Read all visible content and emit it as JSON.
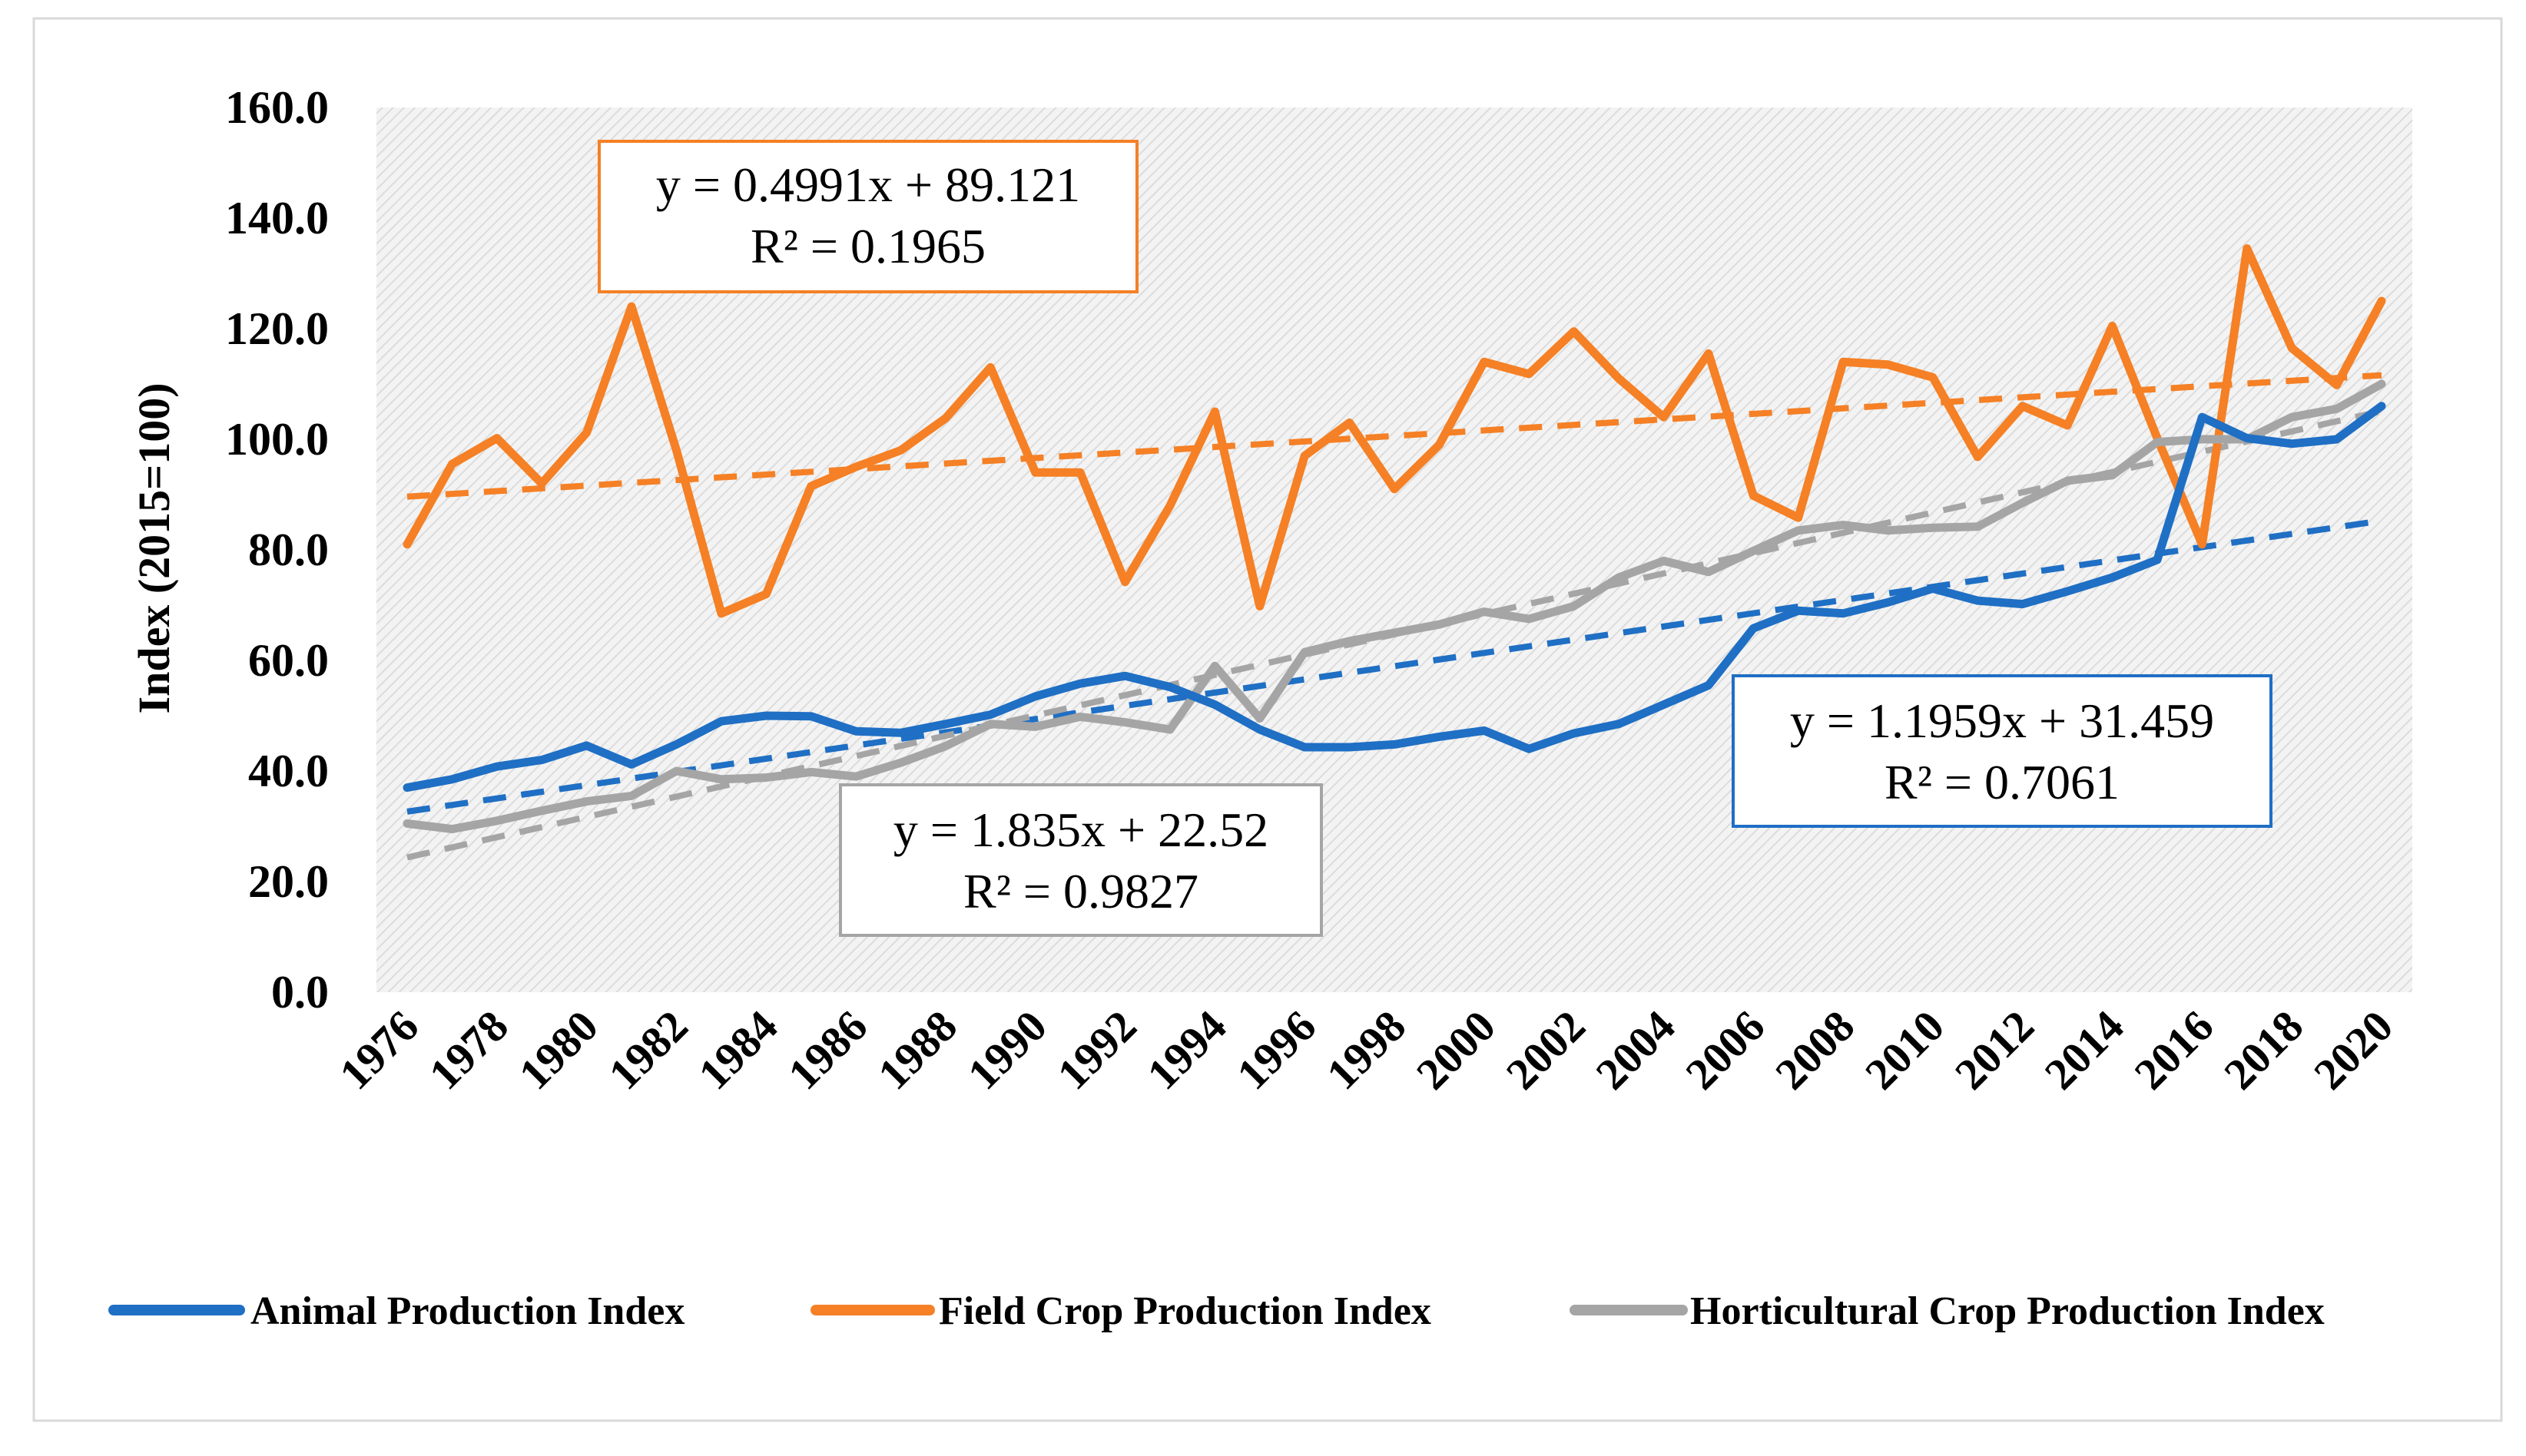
{
  "chart_data": {
    "type": "line",
    "title": "",
    "xlabel": "",
    "ylabel": "Index (2015=100)",
    "ylim": [
      0,
      160
    ],
    "y_ticks": [
      "0.0",
      "20.0",
      "40.0",
      "60.0",
      "80.0",
      "100.0",
      "120.0",
      "140.0",
      "160.0"
    ],
    "x": [
      1976,
      1977,
      1978,
      1979,
      1980,
      1981,
      1982,
      1983,
      1984,
      1985,
      1986,
      1987,
      1988,
      1989,
      1990,
      1991,
      1992,
      1993,
      1994,
      1995,
      1996,
      1997,
      1998,
      1999,
      2000,
      2001,
      2002,
      2003,
      2004,
      2005,
      2006,
      2007,
      2008,
      2009,
      2010,
      2011,
      2012,
      2013,
      2014,
      2015,
      2016,
      2017,
      2018,
      2019,
      2020
    ],
    "x_tick_labels": [
      "1976",
      "1978",
      "1980",
      "1982",
      "1984",
      "1986",
      "1988",
      "1990",
      "1992",
      "1994",
      "1996",
      "1998",
      "2000",
      "2002",
      "2004",
      "2006",
      "2008",
      "2010",
      "2012",
      "2014",
      "2016",
      "2018",
      "2020"
    ],
    "grid": false,
    "legend_position": "bottom",
    "series": [
      {
        "name": "Animal Production Index",
        "color": "#1f6fc4",
        "values": [
          37.0,
          38.5,
          40.8,
          42.0,
          44.6,
          41.2,
          44.8,
          49.0,
          50.0,
          49.9,
          47.2,
          46.9,
          48.5,
          50.2,
          53.5,
          55.8,
          57.2,
          55.2,
          52.0,
          47.5,
          44.3,
          44.3,
          44.8,
          46.2,
          47.3,
          44.0,
          46.8,
          48.5,
          52.0,
          55.5,
          65.8,
          69.0,
          68.5,
          70.5,
          73.0,
          70.8,
          70.2,
          72.5,
          75.0,
          78.2,
          104.0,
          100.2,
          99.2,
          100.0,
          106.0
        ],
        "trendline": {
          "slope": 1.1959,
          "intercept": 31.459,
          "equation": "y = 1.1959x + 31.459",
          "r2": "R² = 0.7061"
        }
      },
      {
        "name": "Field Crop Production Index",
        "color": "#f58025",
        "values": [
          81.0,
          95.5,
          100.2,
          92.0,
          101.2,
          124.0,
          98.0,
          68.5,
          72.0,
          91.5,
          95.0,
          98.0,
          103.8,
          113.0,
          94.0,
          94.0,
          74.2,
          88.0,
          105.0,
          69.8,
          97.0,
          103.0,
          91.0,
          99.0,
          114.0,
          111.8,
          119.5,
          111.0,
          104.0,
          115.5,
          89.8,
          85.8,
          114.0,
          113.5,
          111.2,
          96.8,
          106.0,
          102.5,
          120.5,
          100.2,
          81.0,
          134.5,
          116.5,
          109.8,
          125.0
        ],
        "trendline": {
          "slope": 0.4991,
          "intercept": 89.121,
          "equation": "y = 0.4991x + 89.121",
          "r2": "R² = 0.1965"
        }
      },
      {
        "name": "Horticultural Crop Production Index",
        "color": "#a5a5a5",
        "values": [
          30.5,
          29.5,
          31.0,
          32.8,
          34.5,
          35.5,
          40.0,
          38.5,
          38.8,
          39.8,
          39.0,
          41.5,
          44.5,
          48.5,
          48.0,
          49.8,
          48.8,
          47.5,
          59.0,
          49.5,
          61.5,
          63.5,
          65.0,
          66.5,
          68.8,
          67.5,
          69.8,
          75.0,
          78.0,
          76.0,
          79.8,
          83.5,
          84.5,
          83.5,
          84.0,
          84.2,
          88.5,
          92.5,
          93.5,
          99.5,
          100.0,
          100.0,
          104.0,
          105.5,
          110.0
        ],
        "trendline": {
          "slope": 1.835,
          "intercept": 22.52,
          "equation": "y = 1.835x + 22.52",
          "r2": "R² = 0.9827"
        }
      }
    ]
  }
}
